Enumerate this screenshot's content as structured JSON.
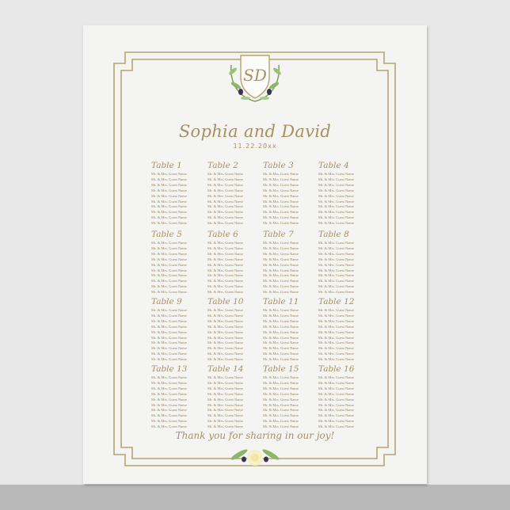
{
  "header": {
    "monogram": "SD",
    "title": "Sophia and David",
    "date": "11.22.20xx"
  },
  "footer": {
    "thanks": "Thank you for sharing in our joy!"
  },
  "colors": {
    "gold": "#a8915f",
    "paper": "#f4f4f3",
    "leaf": "#7fa35a"
  },
  "tables": [
    {
      "name": "Table 1",
      "guests": [
        "Mr. & Mrs. Guest Name",
        "Mr. & Mrs. Guest Name",
        "Mr. & Mrs. Guest Name",
        "Mr. & Mrs. Guest Name",
        "Mr. & Mrs. Guest Name",
        "Mr. & Mrs. Guest Name",
        "Mr. & Mrs. Guest Name",
        "Mr. & Mrs. Guest Name",
        "Mr. & Mrs. Guest Name",
        "Mr. & Mrs. Guest Name"
      ]
    },
    {
      "name": "Table 2",
      "guests": [
        "Mr. & Mrs. Guest Name",
        "Mr. & Mrs. Guest Name",
        "Mr. & Mrs. Guest Name",
        "Mr. & Mrs. Guest Name",
        "Mr. & Mrs. Guest Name",
        "Mr. & Mrs. Guest Name",
        "Mr. & Mrs. Guest Name",
        "Mr. & Mrs. Guest Name",
        "Mr. & Mrs. Guest Name",
        "Mr. & Mrs. Guest Name"
      ]
    },
    {
      "name": "Table 3",
      "guests": [
        "Mr. & Mrs. Guest Name",
        "Mr. & Mrs. Guest Name",
        "Mr. & Mrs. Guest Name",
        "Mr. & Mrs. Guest Name",
        "Mr. & Mrs. Guest Name",
        "Mr. & Mrs. Guest Name",
        "Mr. & Mrs. Guest Name",
        "Mr. & Mrs. Guest Name",
        "Mr. & Mrs. Guest Name",
        "Mr. & Mrs. Guest Name"
      ]
    },
    {
      "name": "Table 4",
      "guests": [
        "Mr. & Mrs. Guest Name",
        "Mr. & Mrs. Guest Name",
        "Mr. & Mrs. Guest Name",
        "Mr. & Mrs. Guest Name",
        "Mr. & Mrs. Guest Name",
        "Mr. & Mrs. Guest Name",
        "Mr. & Mrs. Guest Name",
        "Mr. & Mrs. Guest Name",
        "Mr. & Mrs. Guest Name",
        "Mr. & Mrs. Guest Name"
      ]
    },
    {
      "name": "Table 5",
      "guests": [
        "Mr. & Mrs. Guest Name",
        "Mr. & Mrs. Guest Name",
        "Mr. & Mrs. Guest Name",
        "Mr. & Mrs. Guest Name",
        "Mr. & Mrs. Guest Name",
        "Mr. & Mrs. Guest Name",
        "Mr. & Mrs. Guest Name",
        "Mr. & Mrs. Guest Name",
        "Mr. & Mrs. Guest Name",
        "Mr. & Mrs. Guest Name"
      ]
    },
    {
      "name": "Table 6",
      "guests": [
        "Mr. & Mrs. Guest Name",
        "Mr. & Mrs. Guest Name",
        "Mr. & Mrs. Guest Name",
        "Mr. & Mrs. Guest Name",
        "Mr. & Mrs. Guest Name",
        "Mr. & Mrs. Guest Name",
        "Mr. & Mrs. Guest Name",
        "Mr. & Mrs. Guest Name",
        "Mr. & Mrs. Guest Name",
        "Mr. & Mrs. Guest Name"
      ]
    },
    {
      "name": "Table 7",
      "guests": [
        "Mr. & Mrs. Guest Name",
        "Mr. & Mrs. Guest Name",
        "Mr. & Mrs. Guest Name",
        "Mr. & Mrs. Guest Name",
        "Mr. & Mrs. Guest Name",
        "Mr. & Mrs. Guest Name",
        "Mr. & Mrs. Guest Name",
        "Mr. & Mrs. Guest Name",
        "Mr. & Mrs. Guest Name",
        "Mr. & Mrs. Guest Name"
      ]
    },
    {
      "name": "Table 8",
      "guests": [
        "Mr. & Mrs. Guest Name",
        "Mr. & Mrs. Guest Name",
        "Mr. & Mrs. Guest Name",
        "Mr. & Mrs. Guest Name",
        "Mr. & Mrs. Guest Name",
        "Mr. & Mrs. Guest Name",
        "Mr. & Mrs. Guest Name",
        "Mr. & Mrs. Guest Name",
        "Mr. & Mrs. Guest Name",
        "Mr. & Mrs. Guest Name"
      ]
    },
    {
      "name": "Table 9",
      "guests": [
        "Mr. & Mrs. Guest Name",
        "Mr. & Mrs. Guest Name",
        "Mr. & Mrs. Guest Name",
        "Mr. & Mrs. Guest Name",
        "Mr. & Mrs. Guest Name",
        "Mr. & Mrs. Guest Name",
        "Mr. & Mrs. Guest Name",
        "Mr. & Mrs. Guest Name",
        "Mr. & Mrs. Guest Name",
        "Mr. & Mrs. Guest Name"
      ]
    },
    {
      "name": "Table 10",
      "guests": [
        "Mr. & Mrs. Guest Name",
        "Mr. & Mrs. Guest Name",
        "Mr. & Mrs. Guest Name",
        "Mr. & Mrs. Guest Name",
        "Mr. & Mrs. Guest Name",
        "Mr. & Mrs. Guest Name",
        "Mr. & Mrs. Guest Name",
        "Mr. & Mrs. Guest Name",
        "Mr. & Mrs. Guest Name",
        "Mr. & Mrs. Guest Name"
      ]
    },
    {
      "name": "Table 11",
      "guests": [
        "Mr. & Mrs. Guest Name",
        "Mr. & Mrs. Guest Name",
        "Mr. & Mrs. Guest Name",
        "Mr. & Mrs. Guest Name",
        "Mr. & Mrs. Guest Name",
        "Mr. & Mrs. Guest Name",
        "Mr. & Mrs. Guest Name",
        "Mr. & Mrs. Guest Name",
        "Mr. & Mrs. Guest Name",
        "Mr. & Mrs. Guest Name"
      ]
    },
    {
      "name": "Table 12",
      "guests": [
        "Mr. & Mrs. Guest Name",
        "Mr. & Mrs. Guest Name",
        "Mr. & Mrs. Guest Name",
        "Mr. & Mrs. Guest Name",
        "Mr. & Mrs. Guest Name",
        "Mr. & Mrs. Guest Name",
        "Mr. & Mrs. Guest Name",
        "Mr. & Mrs. Guest Name",
        "Mr. & Mrs. Guest Name",
        "Mr. & Mrs. Guest Name"
      ]
    },
    {
      "name": "Table 13",
      "guests": [
        "Mr. & Mrs. Guest Name",
        "Mr. & Mrs. Guest Name",
        "Mr. & Mrs. Guest Name",
        "Mr. & Mrs. Guest Name",
        "Mr. & Mrs. Guest Name",
        "Mr. & Mrs. Guest Name",
        "Mr. & Mrs. Guest Name",
        "Mr. & Mrs. Guest Name",
        "Mr. & Mrs. Guest Name",
        "Mr. & Mrs. Guest Name"
      ]
    },
    {
      "name": "Table 14",
      "guests": [
        "Mr. & Mrs. Guest Name",
        "Mr. & Mrs. Guest Name",
        "Mr. & Mrs. Guest Name",
        "Mr. & Mrs. Guest Name",
        "Mr. & Mrs. Guest Name",
        "Mr. & Mrs. Guest Name",
        "Mr. & Mrs. Guest Name",
        "Mr. & Mrs. Guest Name",
        "Mr. & Mrs. Guest Name",
        "Mr. & Mrs. Guest Name"
      ]
    },
    {
      "name": "Table 15",
      "guests": [
        "Mr. & Mrs. Guest Name",
        "Mr. & Mrs. Guest Name",
        "Mr. & Mrs. Guest Name",
        "Mr. & Mrs. Guest Name",
        "Mr. & Mrs. Guest Name",
        "Mr. & Mrs. Guest Name",
        "Mr. & Mrs. Guest Name",
        "Mr. & Mrs. Guest Name",
        "Mr. & Mrs. Guest Name",
        "Mr. & Mrs. Guest Name"
      ]
    },
    {
      "name": "Table 16",
      "guests": [
        "Mr. & Mrs. Guest Name",
        "Mr. & Mrs. Guest Name",
        "Mr. & Mrs. Guest Name",
        "Mr. & Mrs. Guest Name",
        "Mr. & Mrs. Guest Name",
        "Mr. & Mrs. Guest Name",
        "Mr. & Mrs. Guest Name",
        "Mr. & Mrs. Guest Name",
        "Mr. & Mrs. Guest Name",
        "Mr. & Mrs. Guest Name"
      ]
    }
  ]
}
